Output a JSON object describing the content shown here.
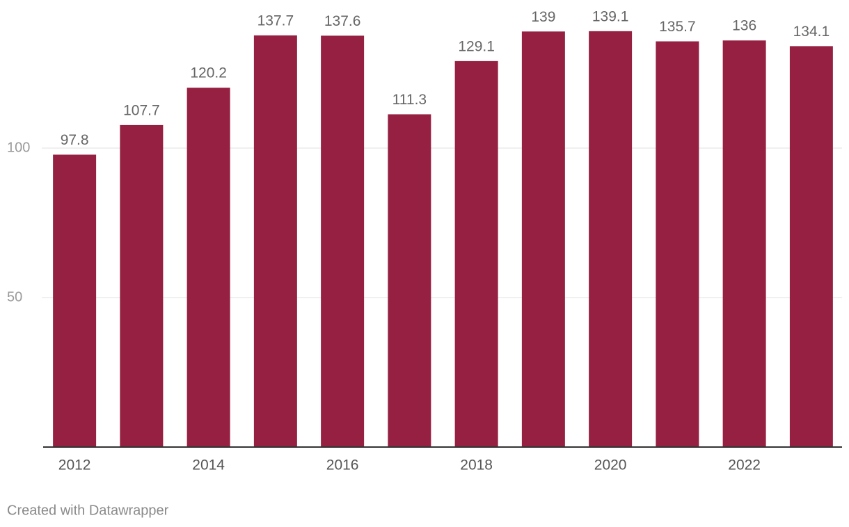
{
  "chart_data": {
    "type": "bar",
    "categories": [
      "2012",
      null,
      "2014",
      null,
      "2016",
      null,
      "2018",
      null,
      "2020",
      null,
      "2022",
      null
    ],
    "values": [
      97.8,
      107.7,
      120.2,
      137.7,
      137.6,
      111.3,
      129.1,
      139,
      139.1,
      135.7,
      136,
      134.1
    ],
    "color": "#962041",
    "ylim": [
      0,
      145
    ],
    "yticks": [
      50,
      100
    ],
    "grid": true,
    "footer": "Created with Datawrapper"
  }
}
